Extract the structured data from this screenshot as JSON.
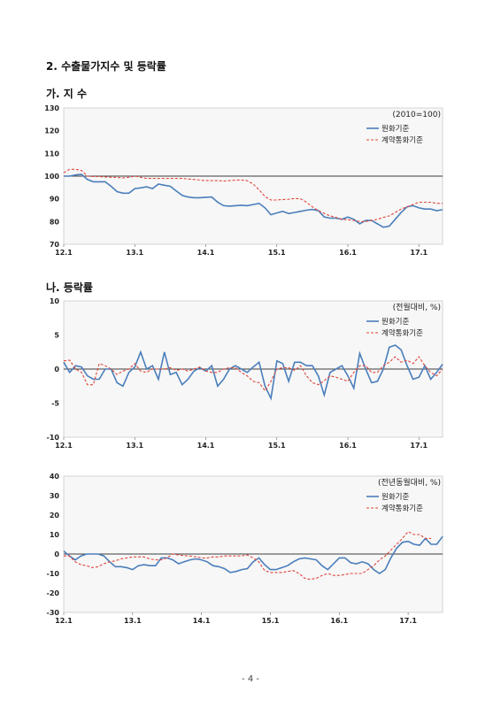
{
  "headings": {
    "main": "2. 수출물가지수 및 등락률",
    "section_a": "가. 지 수",
    "section_b": "나. 등락률"
  },
  "page_number": "- 4 -",
  "colors": {
    "series1": "#4a7ebb",
    "series2": "#e0453a",
    "zero_line": "#000000",
    "plot_bg": "#f7f7f7"
  },
  "chart_data": [
    {
      "type": "line",
      "unit_label": "(2010=100)",
      "x_ticks": [
        "12.1",
        "13.1",
        "14.1",
        "15.1",
        "16.1",
        "17.1"
      ],
      "tick_index": [
        0,
        12,
        24,
        36,
        48,
        60
      ],
      "ylim": [
        70,
        130
      ],
      "y_ticks": [
        70,
        80,
        90,
        100,
        110,
        120,
        130
      ],
      "ref_line": 100,
      "legend": "top-right",
      "series": [
        {
          "name": "원화기준",
          "values": [
            100,
            100,
            100.5,
            100.8,
            98.5,
            97.5,
            97.5,
            97.5,
            95.5,
            93.2,
            92.5,
            92.5,
            94.5,
            94.8,
            95.3,
            94.5,
            96.5,
            96,
            95.5,
            93.5,
            91.5,
            90.8,
            90.5,
            90.5,
            90.7,
            90.8,
            88.5,
            87,
            86.8,
            87,
            87.2,
            87,
            87.5,
            88,
            86,
            83,
            83.8,
            84.5,
            83.5,
            84,
            84.5,
            85,
            85.3,
            84.8,
            82,
            81.5,
            81.5,
            81,
            82,
            81,
            79,
            80.5,
            80.5,
            79,
            77.5,
            78,
            81,
            84,
            86.5,
            87,
            86,
            85.5,
            85.5,
            84.8,
            85.2
          ]
        },
        {
          "name": "계약통화기준",
          "values": [
            101.5,
            103,
            103,
            102.5,
            100,
            99.8,
            99.8,
            99.6,
            99.5,
            99.4,
            99.2,
            99.5,
            100,
            99.5,
            99,
            99,
            99,
            99,
            99,
            99,
            99,
            98.7,
            98.5,
            98.3,
            98,
            98,
            98,
            97.8,
            98,
            98.2,
            98.3,
            98,
            96.5,
            94,
            91,
            89.5,
            89.5,
            89.7,
            89.8,
            90.2,
            90,
            88.5,
            86.5,
            84.8,
            83.5,
            82.5,
            81.8,
            81,
            80.8,
            80.5,
            80,
            80,
            80.5,
            81,
            81.8,
            82.5,
            84,
            85.5,
            86.5,
            87.5,
            88.5,
            88.5,
            88.5,
            88,
            88
          ]
        }
      ]
    },
    {
      "type": "line",
      "unit_label": "(전월대비, %)",
      "x_ticks": [
        "12.1",
        "13.1",
        "14.1",
        "15.1",
        "16.1",
        "17.1"
      ],
      "tick_index": [
        0,
        12,
        24,
        36,
        48,
        60
      ],
      "ylim": [
        -10,
        10
      ],
      "y_ticks": [
        -10,
        -5,
        0,
        5,
        10
      ],
      "ref_line": 0,
      "legend": "top-right",
      "series": [
        {
          "name": "원화기준",
          "values": [
            1,
            -0.5,
            0.5,
            0.3,
            -1,
            -1.5,
            -1.5,
            0,
            0,
            -2,
            -2.5,
            -0.5,
            0.3,
            2.5,
            0,
            0.5,
            -1.5,
            2.5,
            -0.8,
            -0.5,
            -2.3,
            -1.5,
            -0.3,
            0.2,
            -0.3,
            0.5,
            -2.5,
            -1.5,
            0,
            0.5,
            0,
            -0.5,
            0.3,
            1,
            -2.5,
            -4.3,
            1.2,
            0.8,
            -1.8,
            1,
            1,
            0.5,
            0.5,
            -1,
            -3.8,
            -0.5,
            0,
            0.5,
            -1,
            -2.8,
            2.3,
            0,
            -2,
            -1.8,
            0,
            3.2,
            3.5,
            2.8,
            0.5,
            -1.5,
            -1.2,
            0.5,
            -1.5,
            -0.5,
            0.7
          ]
        },
        {
          "name": "계약통화기준",
          "values": [
            1.2,
            1.3,
            0,
            -0.5,
            -2.3,
            -2.3,
            0.8,
            0.5,
            0,
            -0.8,
            -0.3,
            0,
            0.8,
            -0.3,
            -0.5,
            0,
            0,
            0,
            0.2,
            -0.2,
            0,
            -0.3,
            0,
            0.3,
            -0.3,
            -0.5,
            -0.5,
            0,
            0.2,
            0.2,
            -0.5,
            -1,
            -1.8,
            -2,
            -3.2,
            -1.8,
            0,
            0.2,
            0.2,
            -0.2,
            0.5,
            -1,
            -2,
            -2.3,
            -1.7,
            -1,
            -1.2,
            -1.5,
            -1.8,
            -0.5,
            0.5,
            0.5,
            -0.5,
            -0.5,
            0.5,
            1,
            1.8,
            1,
            1.3,
            0.8,
            1.8,
            0.5,
            -0.5,
            -1,
            0
          ]
        }
      ]
    },
    {
      "type": "line",
      "unit_label": "(전년동월대비, %)",
      "x_ticks": [
        "12.1",
        "13.1",
        "14.1",
        "15.1",
        "16.1",
        "17.1"
      ],
      "tick_index": [
        0,
        12,
        24,
        36,
        48,
        60
      ],
      "ylim": [
        -30,
        40
      ],
      "y_ticks": [
        -30,
        -20,
        -10,
        0,
        10,
        20,
        30,
        40
      ],
      "ref_line": 0,
      "legend": "top-right",
      "series": [
        {
          "name": "원화기준",
          "values": [
            1.5,
            -1,
            -3,
            -1,
            0,
            0,
            0,
            -1,
            -4,
            -6.5,
            -6.5,
            -7,
            -8,
            -6,
            -5.5,
            -6,
            -6,
            -2,
            -2,
            -3,
            -5,
            -4,
            -3,
            -2.5,
            -3,
            -4,
            -6,
            -6.5,
            -7.5,
            -9.5,
            -9,
            -8,
            -7.5,
            -4,
            -2,
            -5.5,
            -8,
            -8,
            -7,
            -6,
            -4,
            -2.5,
            -2,
            -2.5,
            -3,
            -6,
            -8,
            -5,
            -2,
            -2,
            -4.5,
            -5,
            -4,
            -5,
            -8,
            -10,
            -8,
            -2,
            3,
            6,
            6.5,
            5,
            4.5,
            8,
            5,
            5,
            9
          ]
        },
        {
          "name": "계약통화기준",
          "values": [
            -1,
            -1,
            -4,
            -5.5,
            -6,
            -7,
            -6.5,
            -5,
            -4,
            -3.5,
            -2.5,
            -2,
            -1.5,
            -1.5,
            -1.5,
            -2.5,
            -3,
            -3,
            -2,
            0,
            -0.5,
            -0.8,
            -1,
            -1.5,
            -2,
            -2,
            -1.5,
            -1.5,
            -1,
            -1,
            -1,
            -1,
            -0.5,
            -2,
            -4,
            -8.5,
            -9.5,
            -9.5,
            -9.5,
            -9,
            -8.5,
            -10,
            -12.5,
            -13,
            -12.5,
            -11,
            -10,
            -11,
            -11,
            -10.5,
            -10,
            -10,
            -10,
            -8,
            -6,
            -3,
            -1,
            2,
            5,
            8,
            11.5,
            10,
            10,
            8,
            8
          ]
        }
      ]
    }
  ]
}
